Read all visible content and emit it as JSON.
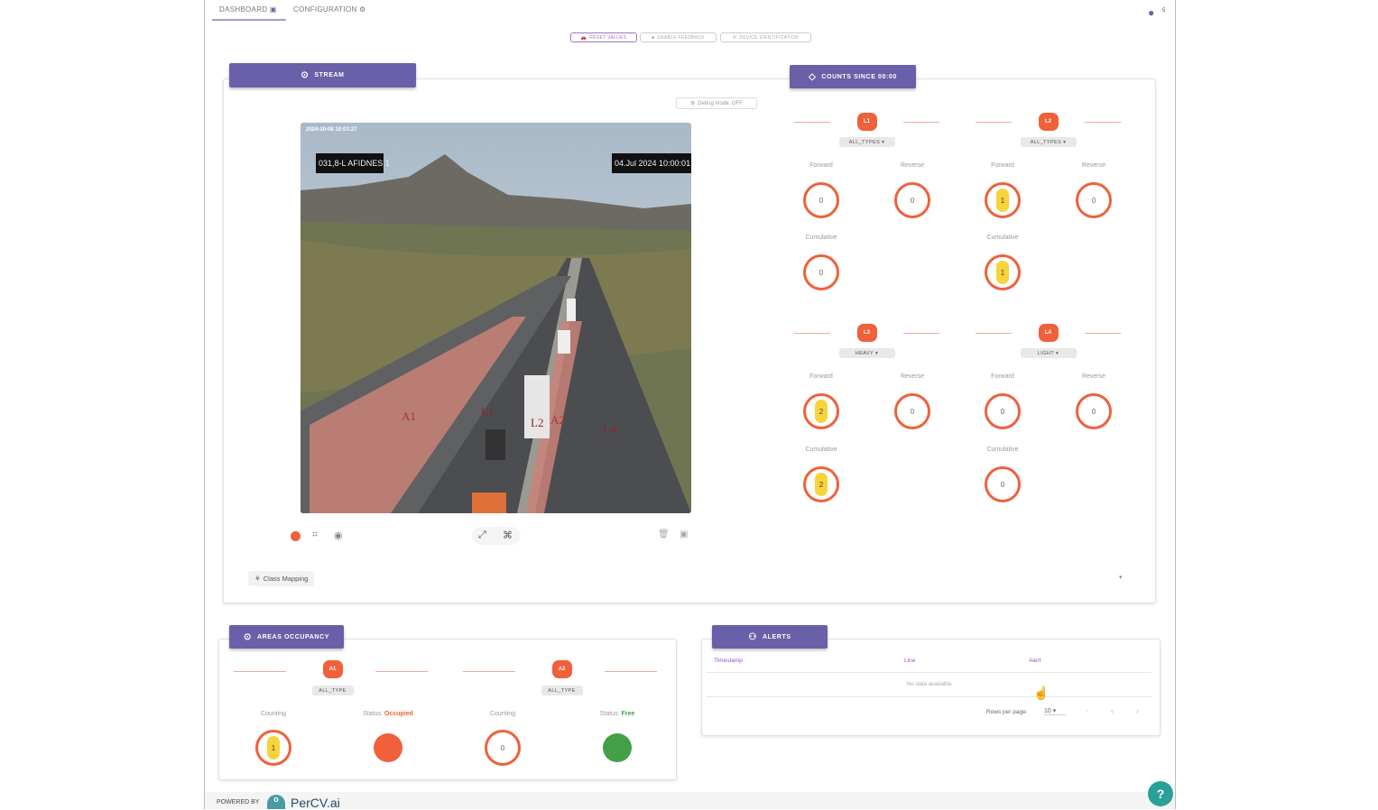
{
  "nav": {
    "tabs": [
      {
        "label": "DASHBOARD",
        "icon": "monitor-icon",
        "active": true
      },
      {
        "label": "CONFIGURATION",
        "icon": "gears-icon"
      }
    ],
    "user_icon": "account-circle-icon",
    "user_badge": "5"
  },
  "toolbar": {
    "buttons": [
      {
        "label": "RESET VALUES",
        "icon": "car-icon",
        "active": true
      },
      {
        "label": "ENABLE FEEDBACK",
        "icon": "camera-icon"
      },
      {
        "label": "DEVICE IDENTIFICATION",
        "icon": "antenna-icon"
      }
    ]
  },
  "stream": {
    "title": "STREAM",
    "debug": "Debug mode: OFF",
    "overlay_timestamp": "2024-10-08 10:03:27",
    "camera_name": "031,8-L AFIDNES 1",
    "camera_datetime": "04.Jul 2024  10:00:01",
    "zone_labels": [
      "A1",
      "L1",
      "L2",
      "A2",
      "L4"
    ],
    "class_mapping": "Class Mapping",
    "record_color": "#f0603a"
  },
  "counts": {
    "title": "COUNTS SINCE 00:00",
    "forward_label": "Forward",
    "reverse_label": "Reverse",
    "cumulative_label": "Cumulative",
    "lines": [
      {
        "id": "L1",
        "type": "ALL_TYPES",
        "forward": 0,
        "reverse": 0,
        "cumulative": 0
      },
      {
        "id": "L2",
        "type": "ALL_TYPES",
        "forward": 1,
        "reverse": 0,
        "cumulative": 1
      },
      {
        "id": "L3",
        "type": "HEAVY",
        "forward": 2,
        "reverse": 0,
        "cumulative": 2
      },
      {
        "id": "L4",
        "type": "LIGHT",
        "forward": 0,
        "reverse": 0,
        "cumulative": 0
      }
    ]
  },
  "areas": {
    "title": "AREAS OCCUPANCY",
    "counting_label": "Counting",
    "status_label": "Status:",
    "items": [
      {
        "id": "A1",
        "type": "ALL_TYPE",
        "count": 1,
        "status": "Occupied",
        "status_color": "#f0603a"
      },
      {
        "id": "A2",
        "type": "ALL_TYPE",
        "count": 0,
        "status": "Free",
        "status_color": "#43a047"
      }
    ]
  },
  "alerts": {
    "title": "ALERTS",
    "columns": [
      "Timestamp",
      "Line",
      "Alert"
    ],
    "empty": "No data available",
    "rows_per_page_label": "Rows per page:",
    "rows_per_page": "10",
    "range": "-"
  },
  "footer": {
    "powered_by": "POWERED BY",
    "brand": "PerCV.ai"
  },
  "help": "?"
}
